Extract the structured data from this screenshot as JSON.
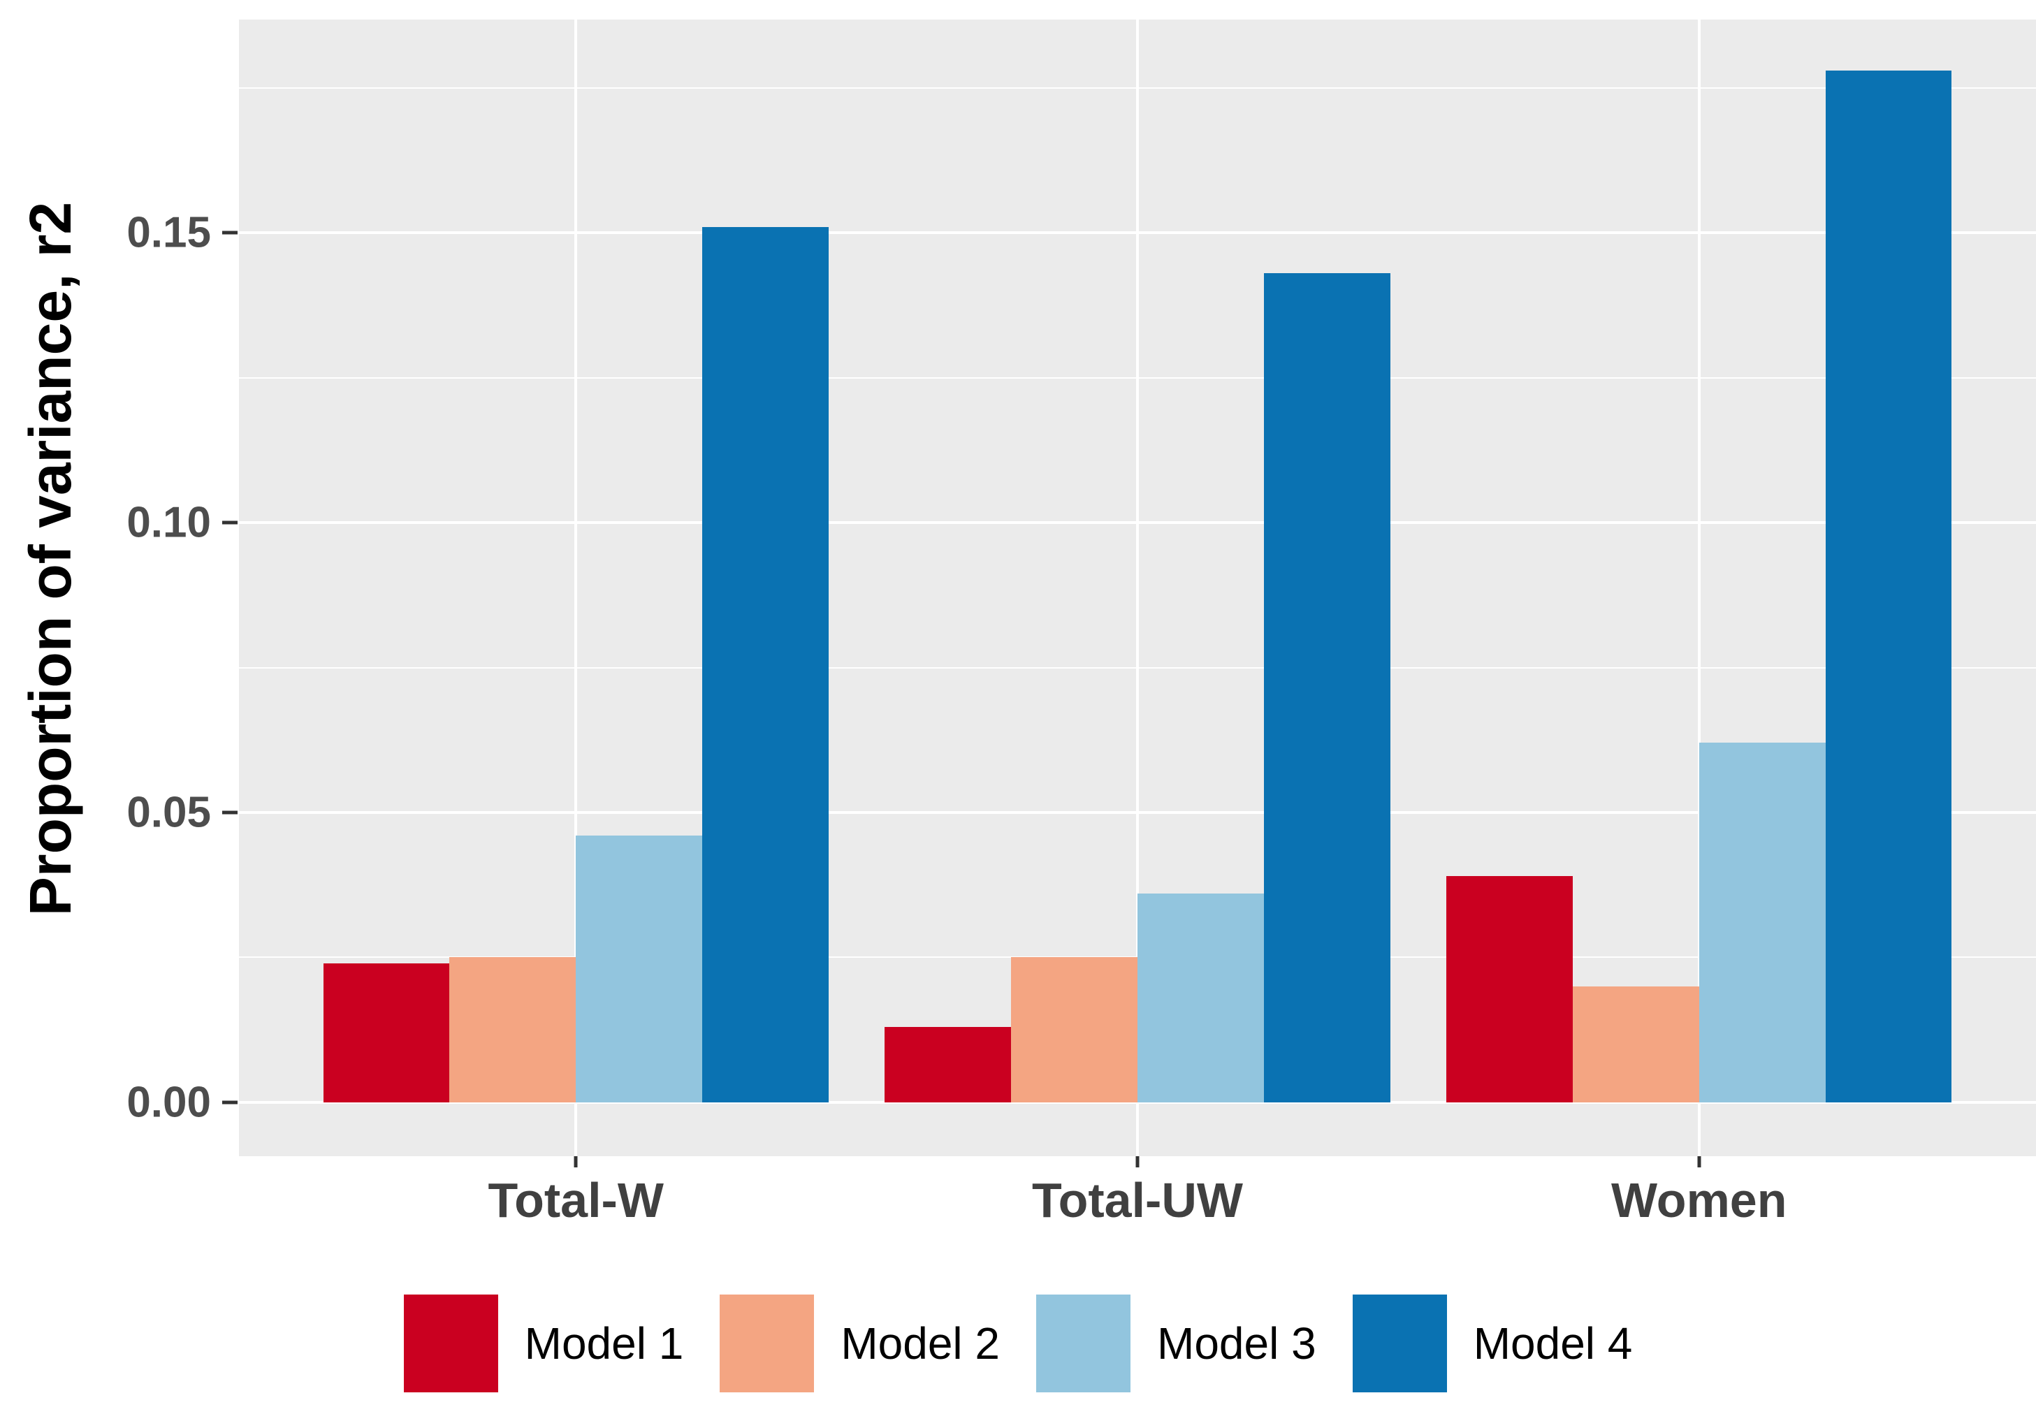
{
  "chart_data": {
    "type": "bar",
    "title": "",
    "xlabel": "",
    "ylabel": "Proportion of variance, r2",
    "categories": [
      "Total-W",
      "Total-UW",
      "Women"
    ],
    "series": [
      {
        "name": "Model 1",
        "color": "#CA0020",
        "values": [
          0.024,
          0.013,
          0.039
        ]
      },
      {
        "name": "Model 2",
        "color": "#F4A582",
        "values": [
          0.025,
          0.025,
          0.02
        ]
      },
      {
        "name": "Model 3",
        "color": "#92C5DE",
        "values": [
          0.046,
          0.036,
          0.062
        ]
      },
      {
        "name": "Model 4",
        "color": "#0A72B2",
        "values": [
          0.151,
          0.143,
          0.178
        ]
      }
    ],
    "y_axis": {
      "ticks": [
        0,
        0.05,
        0.1,
        0.15
      ],
      "tick_labels": [
        "0.00",
        "0.05",
        "0.10",
        "0.15"
      ],
      "minor_ticks": [
        0.025,
        0.075,
        0.125,
        0.175
      ],
      "ylim": [
        -0.0093,
        0.1868
      ]
    },
    "x_axis": {
      "domain": [
        0.4,
        3.6
      ],
      "bar_width_units": 0.225,
      "group_width_units": 0.9
    },
    "legend": {
      "position": "bottom",
      "entries": [
        "Model 1",
        "Model 2",
        "Model 3",
        "Model 4"
      ]
    },
    "style": {
      "panel_background": "#EBEBEB",
      "grid_color": "#FFFFFF",
      "tick_color": "#333333",
      "axis_text_color": "#4D4D4D",
      "x_label_color": "#404040",
      "axis_title_color": "#000000",
      "grid": "on"
    }
  }
}
